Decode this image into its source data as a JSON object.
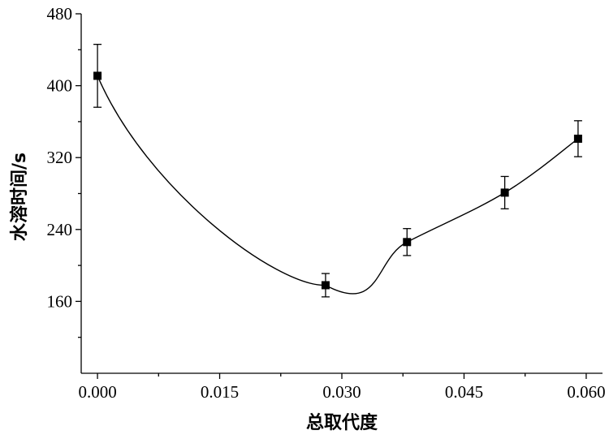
{
  "chart_data": {
    "type": "scatter",
    "title": "",
    "xlabel": "总取代度",
    "ylabel": "水溶时间/s",
    "xlim": [
      -0.002,
      0.062
    ],
    "ylim": [
      80,
      480
    ],
    "x_ticks": [
      "0.000",
      "0.015",
      "0.030",
      "0.045",
      "0.060"
    ],
    "x_tick_values": [
      0.0,
      0.015,
      0.03,
      0.045,
      0.06
    ],
    "y_ticks": [
      "160",
      "240",
      "320",
      "400",
      "480"
    ],
    "y_tick_values": [
      160,
      240,
      320,
      400,
      480
    ],
    "grid": false,
    "legend": "none",
    "fit_curve": true,
    "series": [
      {
        "x": [
          0.0,
          0.028,
          0.038,
          0.05,
          0.059
        ],
        "y": [
          411,
          178,
          226,
          281,
          341
        ],
        "err": [
          35,
          13,
          15,
          18,
          20
        ]
      }
    ]
  }
}
